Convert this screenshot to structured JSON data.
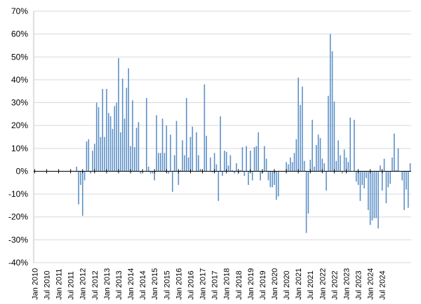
{
  "chart_data": {
    "type": "bar",
    "title": "",
    "xlabel": "",
    "ylabel": "",
    "ylim": [
      -40,
      70
    ],
    "y_ticks": [
      -40,
      -30,
      -20,
      -10,
      0,
      10,
      20,
      30,
      40,
      50,
      60,
      70
    ],
    "y_tick_format": "percent",
    "x_tick_labels": [
      "Jan 2010",
      "Jul 2010",
      "Jan 2011",
      "Jul 2011",
      "Jan 2012",
      "Jul 2012",
      "Jan 2013",
      "Jul 2013",
      "Jan 2014",
      "Jul 2014",
      "Jan 2015",
      "Jul 2015",
      "Jan 2016",
      "Jul 2016",
      "Jan 2017",
      "Jul 2017",
      "Jan 2018",
      "Jul 2018",
      "Jan 2019",
      "Jul 2019",
      "Jan 2020",
      "Jul 2020",
      "Jan 2021",
      "Jul 2021",
      "Jan 2022",
      "Jul 2022",
      "Jan 2023",
      "Jul 2023",
      "Jan 2024",
      "Jul 2024"
    ],
    "grid": true,
    "legend": "none",
    "bar_color": "#5b8fc7",
    "series": [
      {
        "values": [
          0,
          0,
          0,
          0,
          0,
          0,
          0,
          0,
          0,
          0,
          0,
          0,
          0,
          0,
          0,
          0,
          0,
          0,
          0,
          0,
          0,
          2,
          -14.5,
          -6,
          -19.5,
          -4,
          13,
          14,
          -1,
          9,
          12,
          30,
          28,
          15,
          36,
          15,
          36,
          25.5,
          24,
          18.5,
          28.5,
          30,
          49.5,
          17,
          40.5,
          23,
          36.5,
          45,
          11,
          31,
          10.5,
          19,
          21.5,
          -1,
          0,
          0,
          32,
          2,
          -1,
          -1,
          -4,
          24.5,
          8,
          8,
          23,
          8,
          20,
          -1,
          16,
          -9,
          7,
          22,
          -6,
          0.5,
          13.5,
          7,
          32,
          6,
          15,
          19.5,
          0,
          17,
          7,
          1,
          0,
          38,
          15.5,
          0,
          6,
          -0.5,
          8,
          3,
          -13,
          24,
          -2,
          9,
          8.5,
          2.5,
          7,
          0.5,
          -1,
          3.5,
          -1,
          0.5,
          10.5,
          -2,
          11,
          -6,
          9,
          -4,
          10.5,
          11,
          17,
          -4,
          -1,
          11,
          5.5,
          -4,
          -7,
          -7,
          -6,
          -12.5,
          -11,
          0,
          0,
          0,
          4,
          3,
          6,
          4,
          8,
          14,
          41,
          29,
          37,
          4.5,
          -27,
          -18.5,
          5,
          22.5,
          2,
          11.5,
          16,
          14.5,
          5.5,
          3.5,
          -8.5,
          33,
          60,
          52.5,
          30.5,
          4.5,
          13.5,
          7,
          -1,
          9.5,
          6,
          4,
          23.5,
          0,
          22.5,
          -4.5,
          -6,
          -13,
          -6,
          -7.5,
          -3,
          -17,
          -23.5,
          -21.5,
          -20.5,
          -20.5,
          -25,
          2.5,
          -8.5,
          5.5,
          -14,
          -7,
          -5.5,
          6,
          16.5,
          0.5,
          10,
          0,
          -4,
          -17,
          -8,
          -16,
          3.5
        ]
      }
    ]
  }
}
